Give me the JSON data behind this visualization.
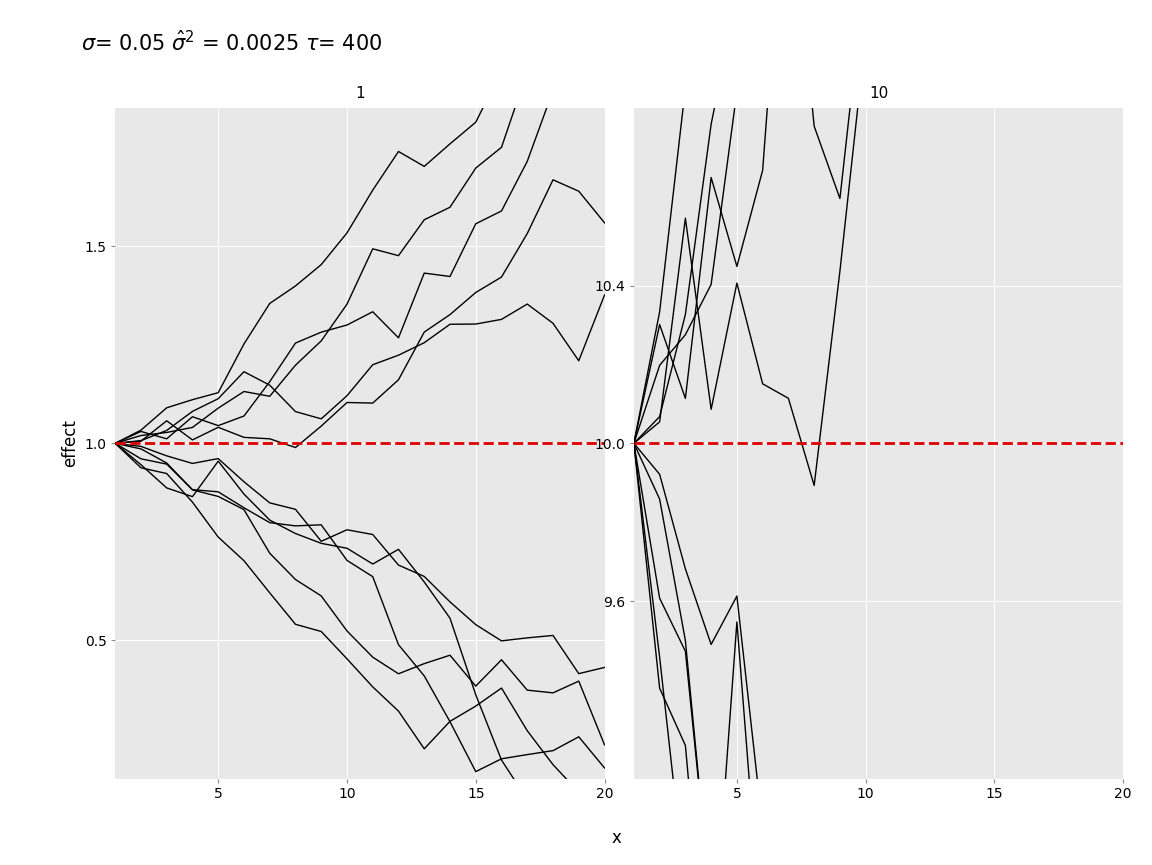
{
  "title": "$\\sigma$= 0.05 $\\hat{\\sigma}^2$ = 0.0025 $\\tau$= 400",
  "panel_labels": [
    "1",
    "10"
  ],
  "baseline1": 1.0,
  "baseline2": 10.0,
  "xlabel": "x",
  "ylabel": "effect",
  "x_ticks": [
    5,
    10,
    15,
    20
  ],
  "yticks1": [
    0.5,
    1.0,
    1.5
  ],
  "yticks2": [
    9.6,
    10.0,
    10.4
  ],
  "ylim1": [
    0.15,
    1.85
  ],
  "ylim2": [
    9.15,
    10.85
  ],
  "n_steps": 20,
  "n_walks": 5,
  "sigma": 0.05,
  "seed": 12345,
  "background_color": "#e8e8e8",
  "header_color": "#d0d0d0",
  "line_color": "#000000",
  "baseline_color": "#dd0000",
  "grid_color": "#ffffff",
  "fig_bg": "#ffffff"
}
